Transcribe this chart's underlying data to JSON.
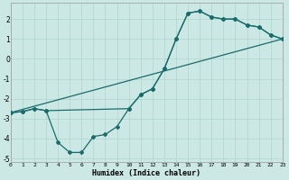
{
  "xlabel": "Humidex (Indice chaleur)",
  "xlim": [
    0,
    23
  ],
  "ylim": [
    -5.2,
    2.8
  ],
  "xticks": [
    0,
    1,
    2,
    3,
    4,
    5,
    6,
    7,
    8,
    9,
    10,
    11,
    12,
    13,
    14,
    15,
    16,
    17,
    18,
    19,
    20,
    21,
    22,
    23
  ],
  "yticks": [
    -5,
    -4,
    -3,
    -2,
    -1,
    0,
    1,
    2
  ],
  "bg_color": "#cce8e4",
  "line_color": "#1a6b6b",
  "grid_color": "#aed4ce",
  "curve1_x": [
    0,
    1,
    2,
    3,
    10,
    11,
    12,
    13,
    14,
    15,
    16,
    17,
    18,
    19,
    20,
    21,
    22,
    23
  ],
  "curve1_y": [
    -2.7,
    -2.65,
    -2.5,
    -2.6,
    -2.5,
    -1.8,
    -1.5,
    -0.5,
    1.0,
    2.3,
    2.4,
    2.1,
    2.0,
    2.0,
    1.7,
    1.6,
    1.2,
    1.0
  ],
  "curve2_x": [
    0,
    1,
    2,
    3,
    4,
    5,
    6,
    7,
    8,
    9,
    10,
    11,
    12,
    13,
    14,
    15,
    16,
    17,
    18,
    19,
    20,
    21,
    22,
    23
  ],
  "curve2_y": [
    -2.7,
    -2.65,
    -2.5,
    -2.6,
    -4.2,
    -4.7,
    -4.7,
    -3.9,
    -3.8,
    -3.4,
    -2.5,
    -1.8,
    -1.5,
    -0.5,
    1.0,
    2.3,
    2.4,
    2.1,
    2.0,
    2.0,
    1.7,
    1.6,
    1.2,
    1.0
  ],
  "curve3_x": [
    0,
    23
  ],
  "curve3_y": [
    -2.7,
    1.0
  ]
}
